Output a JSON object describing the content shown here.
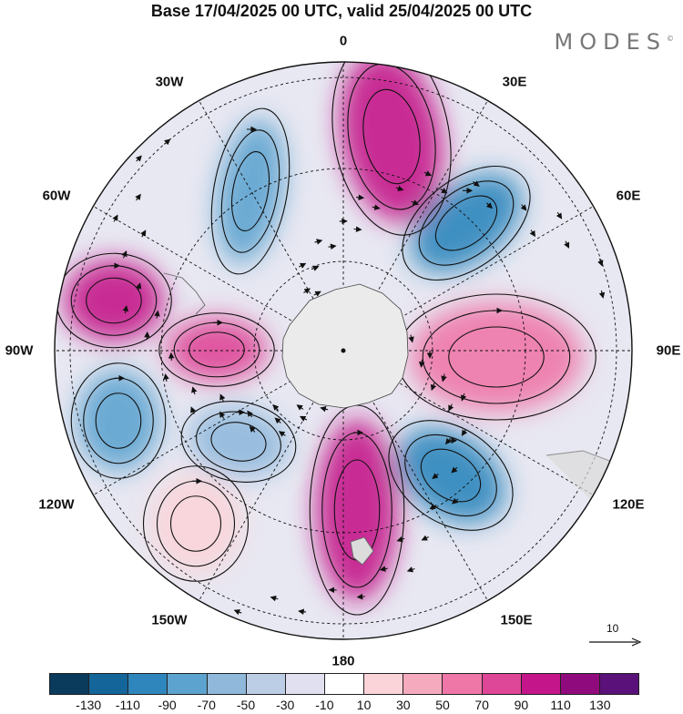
{
  "title": "Base 17/04/2025 00 UTC, valid 25/04/2025 00 UTC",
  "brand": "MODES",
  "brand_mark": "©",
  "longitude_labels": [
    "0",
    "30E",
    "60E",
    "90E",
    "120E",
    "150E",
    "180",
    "150W",
    "120W",
    "90W",
    "60W",
    "30W"
  ],
  "vector_reference": {
    "label": "10"
  },
  "colorbar": {
    "colors": [
      "#0a3a5c",
      "#13659a",
      "#2f86bc",
      "#5da3cf",
      "#8fb8db",
      "#bccde6",
      "#e0e0f0",
      "#ffffff",
      "#fad4d8",
      "#f6aabd",
      "#ee77a8",
      "#de4697",
      "#c4168a",
      "#8f0a7c",
      "#5a1179"
    ],
    "tick_labels": [
      "-130",
      "-110",
      "-90",
      "-70",
      "-50",
      "-30",
      "-10",
      "10",
      "30",
      "50",
      "70",
      "90",
      "110",
      "130"
    ]
  },
  "anomaly_centers": [
    {
      "name": "pos-0-30E",
      "color": "#c4168a",
      "value": 100
    },
    {
      "name": "neg-30-60E",
      "color": "#2f86bc",
      "value": -95
    },
    {
      "name": "pos-90E",
      "color": "#ee77a8",
      "value": 70
    },
    {
      "name": "neg-120-150E",
      "color": "#2f86bc",
      "value": -100
    },
    {
      "name": "pos-180",
      "color": "#c4168a",
      "value": 105
    },
    {
      "name": "neg-150W",
      "color": "#8fb8db",
      "value": -50
    },
    {
      "name": "pos-120W",
      "color": "#fad4d8",
      "value": 30
    },
    {
      "name": "neg-105W",
      "color": "#5da3cf",
      "value": -75
    },
    {
      "name": "pos-90W",
      "color": "#de4697",
      "value": 85
    },
    {
      "name": "pos-70W",
      "color": "#c4168a",
      "value": 95
    },
    {
      "name": "neg-30W",
      "color": "#5da3cf",
      "value": -70
    }
  ]
}
